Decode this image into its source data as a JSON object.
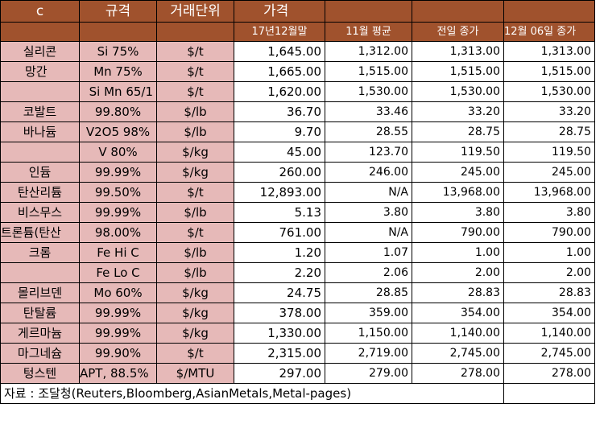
{
  "header": {
    "col_a": "c",
    "col_spec": "규격",
    "col_unit": "거래단위",
    "col_price": "가격",
    "sub_dec": "17년12월말",
    "sub_nov": "11월 평균",
    "sub_prev": "전일 종가",
    "sub_today": "12월 06일 종가"
  },
  "rows": [
    {
      "name": "실리콘",
      "spec": "Si 75%",
      "unit": "$/t",
      "dec": "1,645.00",
      "nov": "1,312.00",
      "prev": "1,313.00",
      "today": "1,313.00"
    },
    {
      "name": "망간",
      "spec": "Mn 75%",
      "unit": "$/t",
      "dec": "1,665.00",
      "nov": "1,515.00",
      "prev": "1,515.00",
      "today": "1,515.00"
    },
    {
      "name": "",
      "spec": "Si Mn 65/1",
      "unit": "$/t",
      "dec": "1,620.00",
      "nov": "1,530.00",
      "prev": "1,530.00",
      "today": "1,530.00"
    },
    {
      "name": "코발트",
      "spec": "99.80%",
      "unit": "$/lb",
      "dec": "36.70",
      "nov": "33.46",
      "prev": "33.20",
      "today": "33.20"
    },
    {
      "name": "바나듐",
      "spec": "V2O5 98%",
      "unit": "$/lb",
      "dec": "9.70",
      "nov": "28.55",
      "prev": "28.75",
      "today": "28.75"
    },
    {
      "name": "",
      "spec": "V 80%",
      "unit": "$/kg",
      "dec": "45.00",
      "nov": "123.70",
      "prev": "119.50",
      "today": "119.50"
    },
    {
      "name": "인듐",
      "spec": "99.99%",
      "unit": "$/kg",
      "dec": "260.00",
      "nov": "246.00",
      "prev": "245.00",
      "today": "245.00"
    },
    {
      "name": "탄산리튬",
      "spec": "99.50%",
      "unit": "$/t",
      "dec": "12,893.00",
      "nov": "N/A",
      "prev": "13,968.00",
      "today": "13,968.00"
    },
    {
      "name": "비스무스",
      "spec": "99.99%",
      "unit": "$/lb",
      "dec": "5.13",
      "nov": "3.80",
      "prev": "3.80",
      "today": "3.80"
    },
    {
      "name": "트론튬(탄산",
      "spec": "98.00%",
      "unit": "$/t",
      "dec": "761.00",
      "nov": "N/A",
      "prev": "790.00",
      "today": "790.00"
    },
    {
      "name": "크롬",
      "spec": "Fe Hi C",
      "unit": "$/lb",
      "dec": "1.20",
      "nov": "1.07",
      "prev": "1.00",
      "today": "1.00"
    },
    {
      "name": "",
      "spec": "Fe Lo C",
      "unit": "$/lb",
      "dec": "2.20",
      "nov": "2.06",
      "prev": "2.00",
      "today": "2.00"
    },
    {
      "name": "몰리브덴",
      "spec": "Mo 60%",
      "unit": "$/kg",
      "dec": "24.75",
      "nov": "28.85",
      "prev": "28.83",
      "today": "28.83"
    },
    {
      "name": "탄탈륨",
      "spec": "99.99%",
      "unit": "$/kg",
      "dec": "378.00",
      "nov": "359.00",
      "prev": "354.00",
      "today": "354.00"
    },
    {
      "name": "게르마늄",
      "spec": "99.99%",
      "unit": "$/kg",
      "dec": "1,330.00",
      "nov": "1,150.00",
      "prev": "1,140.00",
      "today": "1,140.00"
    },
    {
      "name": "마그네슘",
      "spec": "99.90%",
      "unit": "$/t",
      "dec": "2,315.00",
      "nov": "2,719.00",
      "prev": "2,745.00",
      "today": "2,745.00"
    },
    {
      "name": "텅스텐",
      "spec": "APT, 88.5%",
      "unit": "$/MTU",
      "dec": "297.00",
      "nov": "279.00",
      "prev": "278.00",
      "today": "278.00"
    }
  ],
  "source": "자료 : 조달청(Reuters,Bloomberg,AsianMetals,Metal-pages)",
  "colors": {
    "header_bg": "#a0522d",
    "label_bg": "#e6b9b8"
  }
}
